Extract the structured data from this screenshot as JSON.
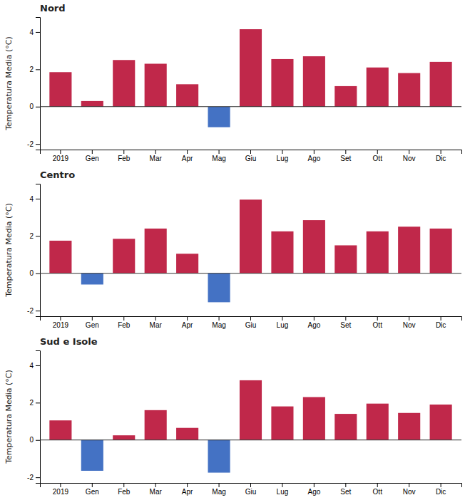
{
  "chart_data": [
    {
      "type": "bar",
      "title": "Nord",
      "categories": [
        "2019",
        "Gen",
        "Feb",
        "Mar",
        "Apr",
        "Mag",
        "Giu",
        "Lug",
        "Ago",
        "Set",
        "Ott",
        "Nov",
        "Dic"
      ],
      "values": [
        1.85,
        0.3,
        2.5,
        2.3,
        1.2,
        -1.1,
        4.15,
        2.55,
        2.7,
        1.1,
        2.1,
        1.8,
        2.4
      ],
      "colors": [
        "#C0284A",
        "#C0284A",
        "#C0284A",
        "#C0284A",
        "#C0284A",
        "#4472C4",
        "#C0284A",
        "#C0284A",
        "#C0284A",
        "#C0284A",
        "#C0284A",
        "#C0284A",
        "#C0284A"
      ],
      "ylabel": "Temperatura Media (°C)",
      "ylim": [
        -2.3,
        4.8
      ],
      "yticks": [
        -2,
        0,
        2,
        4
      ],
      "grid": false
    },
    {
      "type": "bar",
      "title": "Centro",
      "categories": [
        "2019",
        "Gen",
        "Feb",
        "Mar",
        "Apr",
        "Mag",
        "Giu",
        "Lug",
        "Ago",
        "Set",
        "Ott",
        "Nov",
        "Dic"
      ],
      "values": [
        1.75,
        -0.6,
        1.85,
        2.4,
        1.05,
        -1.55,
        3.95,
        2.25,
        2.85,
        1.5,
        2.25,
        2.5,
        2.4
      ],
      "colors": [
        "#C0284A",
        "#4472C4",
        "#C0284A",
        "#C0284A",
        "#C0284A",
        "#4472C4",
        "#C0284A",
        "#C0284A",
        "#C0284A",
        "#C0284A",
        "#C0284A",
        "#C0284A",
        "#C0284A"
      ],
      "ylabel": "Temperatura Media (°C)",
      "ylim": [
        -2.3,
        4.8
      ],
      "yticks": [
        -2,
        0,
        2,
        4
      ],
      "grid": false
    },
    {
      "type": "bar",
      "title": "Sud e Isole",
      "categories": [
        "2019",
        "Gen",
        "Feb",
        "Mar",
        "Apr",
        "Mag",
        "Giu",
        "Lug",
        "Ago",
        "Set",
        "Ott",
        "Nov",
        "Dic"
      ],
      "values": [
        1.05,
        -1.65,
        0.25,
        1.6,
        0.65,
        -1.75,
        3.2,
        1.8,
        2.3,
        1.4,
        1.95,
        1.45,
        1.9
      ],
      "colors": [
        "#C0284A",
        "#4472C4",
        "#C0284A",
        "#C0284A",
        "#C0284A",
        "#4472C4",
        "#C0284A",
        "#C0284A",
        "#C0284A",
        "#C0284A",
        "#C0284A",
        "#C0284A",
        "#C0284A"
      ],
      "ylabel": "Temperatura Media (°C)",
      "ylim": [
        -2.3,
        4.8
      ],
      "yticks": [
        -2,
        0,
        2,
        4
      ],
      "grid": false
    }
  ]
}
